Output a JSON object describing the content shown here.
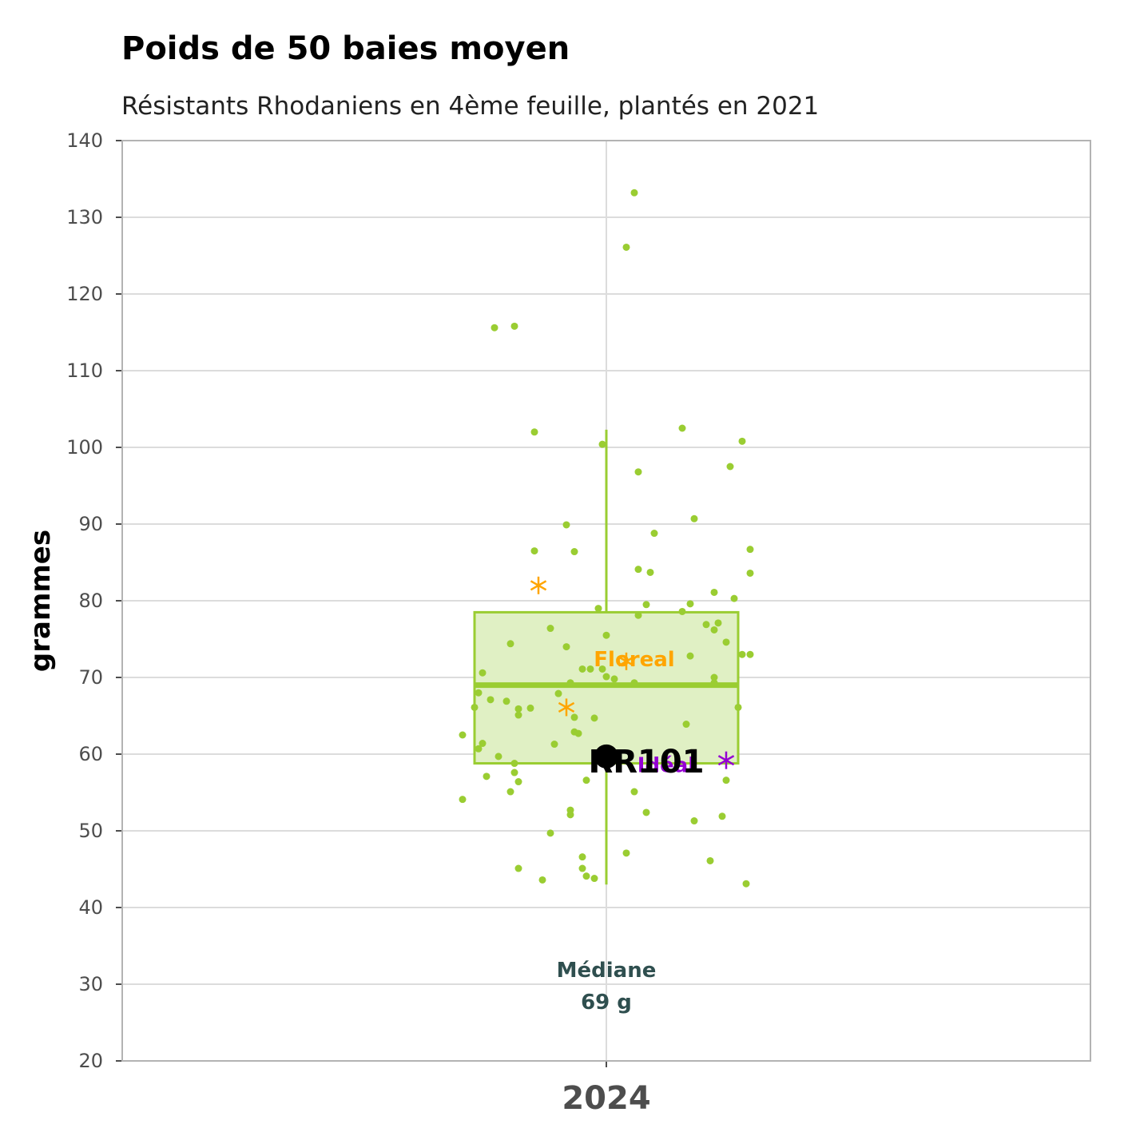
{
  "chart_data": {
    "type": "boxplot",
    "title": "Poids de 50 baies moyen",
    "subtitle": "Résistants Rhodaniens en 4ème feuille, plantés en 2021",
    "ylabel": "grammes",
    "ylim": [
      20,
      140
    ],
    "yticks": [
      20,
      30,
      40,
      50,
      60,
      70,
      80,
      90,
      100,
      110,
      120,
      130,
      140
    ],
    "categories": [
      "2024"
    ],
    "grid": true,
    "colors": {
      "box": "#9acd32",
      "box_fill": "#e0f0c4",
      "points": "#9acd32",
      "floreal": "#ffa500",
      "ideal": "#9400d3",
      "highlight": "#000000",
      "median_text": "#2f4f4f"
    },
    "box": {
      "min": 43,
      "q1": 58.8,
      "median": 69,
      "q3": 78.5,
      "max": 102.3
    },
    "median_annotation": {
      "line1": "Médiane",
      "line2": "69 g",
      "y": 28
    },
    "points": [
      [
        -0.28,
        115.6
      ],
      [
        -0.23,
        115.8
      ],
      [
        0.07,
        133.2
      ],
      [
        0.05,
        126.1
      ],
      [
        -0.18,
        102
      ],
      [
        -0.01,
        100.4
      ],
      [
        0.19,
        102.5
      ],
      [
        0.34,
        100.8
      ],
      [
        0.08,
        96.8
      ],
      [
        0.31,
        97.5
      ],
      [
        -0.1,
        89.9
      ],
      [
        0.12,
        88.8
      ],
      [
        0.22,
        90.7
      ],
      [
        -0.18,
        86.5
      ],
      [
        -0.08,
        86.4
      ],
      [
        0.36,
        86.7
      ],
      [
        0.08,
        84.1
      ],
      [
        0.11,
        83.7
      ],
      [
        0.36,
        83.6
      ],
      [
        -0.02,
        79
      ],
      [
        0.1,
        79.5
      ],
      [
        0.21,
        79.6
      ],
      [
        0.27,
        81.1
      ],
      [
        0.32,
        80.3
      ],
      [
        0.08,
        78.1
      ],
      [
        0.19,
        78.6
      ],
      [
        0.25,
        76.9
      ],
      [
        0.27,
        76.2
      ],
      [
        0.28,
        77.1
      ],
      [
        -0.14,
        76.4
      ],
      [
        -0.24,
        74.4
      ],
      [
        0.3,
        74.6
      ],
      [
        -0.1,
        74
      ],
      [
        0.0,
        75.5
      ],
      [
        0.34,
        73
      ],
      [
        0.36,
        73
      ],
      [
        0.21,
        72.8
      ],
      [
        -0.06,
        71.1
      ],
      [
        -0.04,
        71.1
      ],
      [
        -0.01,
        71.1
      ],
      [
        -0.31,
        70.6
      ],
      [
        0.0,
        70.1
      ],
      [
        0.02,
        69.8
      ],
      [
        0.27,
        70
      ],
      [
        -0.09,
        69.3
      ],
      [
        0.07,
        69.3
      ],
      [
        0.27,
        69.3
      ],
      [
        -0.32,
        68
      ],
      [
        -0.12,
        67.9
      ],
      [
        -0.29,
        67.1
      ],
      [
        -0.25,
        66.9
      ],
      [
        -0.22,
        65.9
      ],
      [
        -0.19,
        66
      ],
      [
        -0.33,
        66.1
      ],
      [
        0.33,
        66.1
      ],
      [
        -0.22,
        65.1
      ],
      [
        -0.08,
        64.8
      ],
      [
        -0.03,
        64.7
      ],
      [
        0.2,
        63.9
      ],
      [
        -0.08,
        62.9
      ],
      [
        -0.07,
        62.7
      ],
      [
        -0.36,
        62.5
      ],
      [
        -0.31,
        61.4
      ],
      [
        -0.13,
        61.3
      ],
      [
        -0.32,
        60.7
      ],
      [
        -0.27,
        59.7
      ],
      [
        -0.23,
        58.8
      ],
      [
        -0.23,
        57.6
      ],
      [
        -0.22,
        56.4
      ],
      [
        -0.3,
        57.1
      ],
      [
        -0.05,
        56.6
      ],
      [
        0.3,
        56.6
      ],
      [
        -0.24,
        55.1
      ],
      [
        0.07,
        55.1
      ],
      [
        -0.36,
        54.1
      ],
      [
        -0.09,
        52.7
      ],
      [
        -0.09,
        52.1
      ],
      [
        0.1,
        52.4
      ],
      [
        0.22,
        51.3
      ],
      [
        0.29,
        51.9
      ],
      [
        -0.14,
        49.7
      ],
      [
        -0.06,
        46.6
      ],
      [
        0.05,
        47.1
      ],
      [
        0.26,
        46.1
      ],
      [
        -0.22,
        45.1
      ],
      [
        -0.06,
        45.1
      ],
      [
        -0.05,
        44.1
      ],
      [
        -0.03,
        43.8
      ],
      [
        -0.16,
        43.6
      ],
      [
        0.35,
        43.1
      ]
    ],
    "floreal_points": [
      [
        -0.17,
        82
      ],
      [
        0.05,
        72.1
      ],
      [
        -0.1,
        66.1
      ]
    ],
    "floreal_label": {
      "text": "Floreal",
      "x": 0.07,
      "y": 72.4
    },
    "ideal_points": [
      [
        0.3,
        59.2
      ]
    ],
    "ideal_label": {
      "text": "Idéal",
      "x": 0.15,
      "y": 58.6
    },
    "highlight_point": {
      "x": 0.0,
      "y": 59.7
    },
    "highlight_label": {
      "text": "RR101",
      "x": 0.1,
      "y": 59.7
    }
  }
}
